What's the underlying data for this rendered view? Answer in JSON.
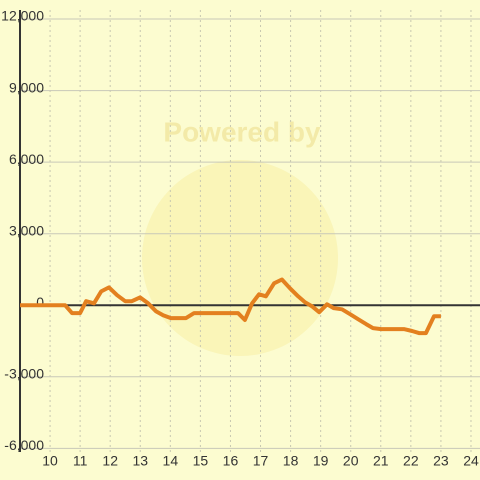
{
  "chart_data": {
    "type": "line",
    "watermark": "Powered by",
    "x": [
      9.0,
      10.5,
      10.73,
      11.0,
      11.2,
      11.46,
      11.7,
      11.96,
      12.23,
      12.5,
      12.72,
      12.99,
      13.26,
      13.52,
      13.76,
      14.02,
      14.25,
      14.52,
      14.79,
      16.05,
      16.25,
      16.48,
      16.72,
      16.95,
      17.18,
      17.45,
      17.71,
      17.98,
      18.25,
      18.48,
      18.71,
      18.95,
      19.21,
      19.44,
      19.71,
      19.98,
      20.24,
      20.51,
      20.74,
      21.01,
      21.27,
      21.77,
      22.04,
      22.27,
      22.5,
      22.77,
      23.0
    ],
    "series": [
      {
        "color": "#e3801f",
        "values": [
          0,
          0,
          -330,
          -330,
          170,
          80,
          580,
          750,
          420,
          170,
          170,
          330,
          80,
          -250,
          -420,
          -540,
          -540,
          -540,
          -330,
          -330,
          -330,
          -620,
          80,
          460,
          375,
          920,
          1080,
          710,
          375,
          125,
          -40,
          -290,
          40,
          -125,
          -170,
          -375,
          -580,
          -790,
          -960,
          -1000,
          -1000,
          -1000,
          -1080,
          -1170,
          -1170,
          -460,
          -460
        ]
      }
    ],
    "xlim": [
      9,
      24.3
    ],
    "xticks": [
      10,
      11,
      12,
      13,
      14,
      15,
      16,
      17,
      18,
      19,
      20,
      21,
      22,
      23,
      24
    ],
    "ylim": [
      -6300,
      12400
    ],
    "yticks": [
      {
        "value": 12000,
        "label": "12,000"
      },
      {
        "value": 9000,
        "label": "9,000"
      },
      {
        "value": 6000,
        "label": "6,000"
      },
      {
        "value": 3000,
        "label": "3,000"
      },
      0,
      {
        "value": -3000,
        "label": "-3,000"
      },
      {
        "value": -6000,
        "label": "-6,000"
      }
    ],
    "grid": true
  }
}
